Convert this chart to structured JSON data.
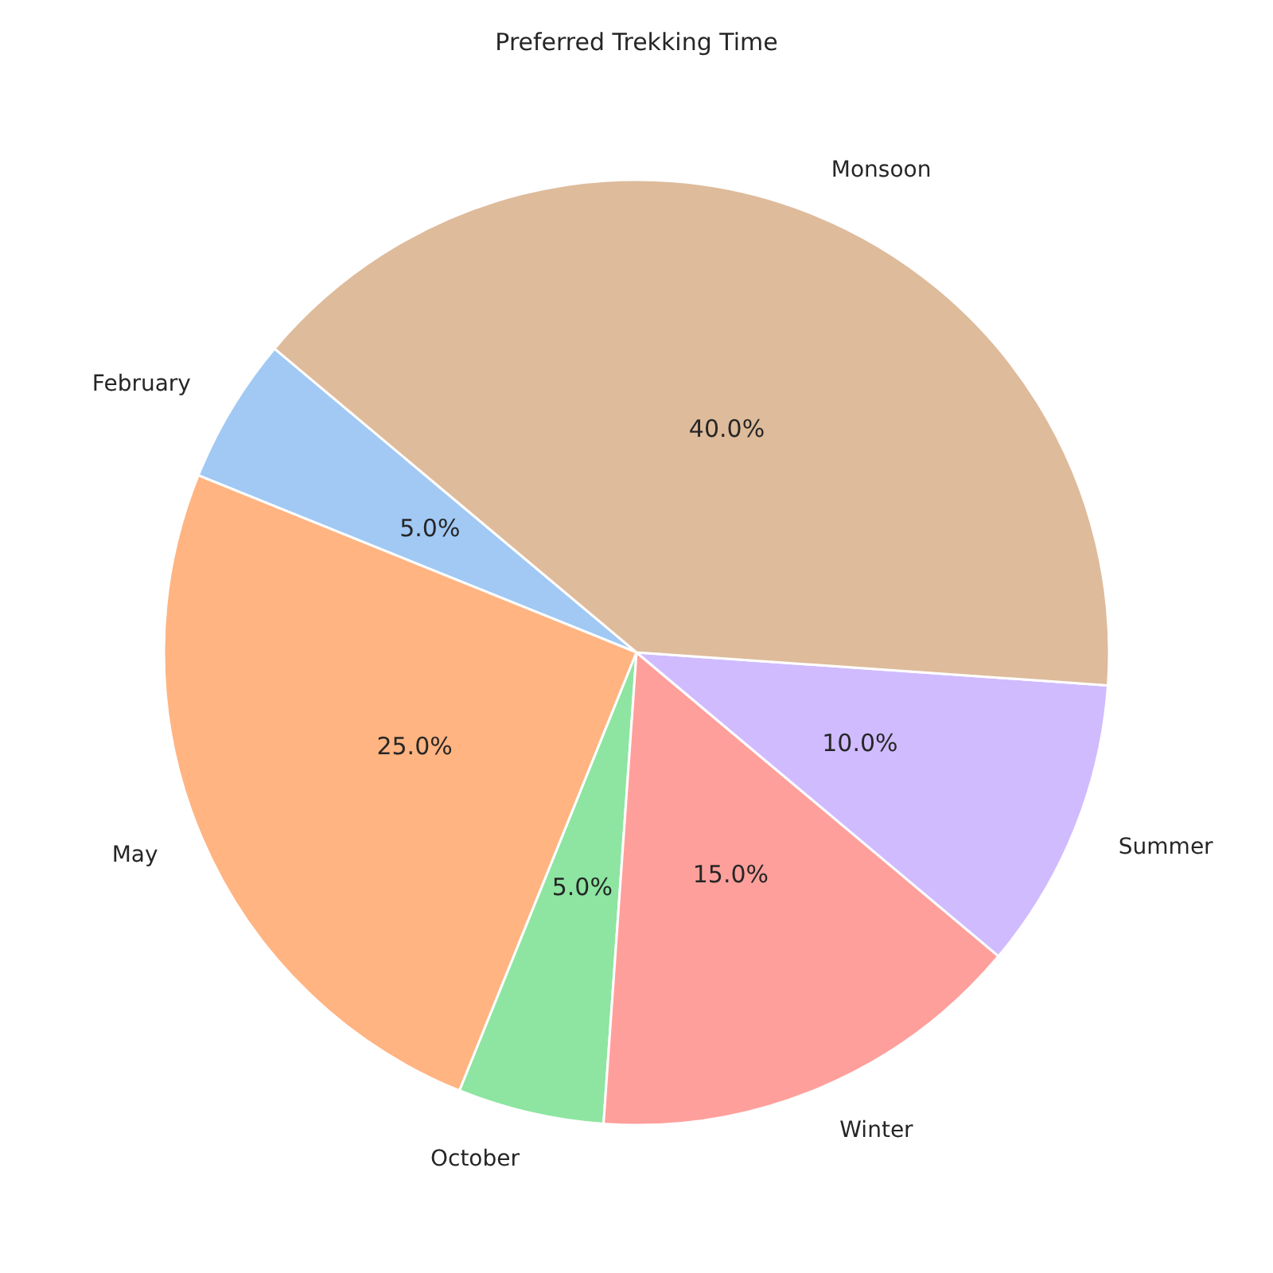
{
  "chart_data": {
    "type": "pie",
    "title": "Preferred Trekking Time",
    "categories": [
      "February",
      "May",
      "October",
      "Winter",
      "Summer",
      "Monsoon"
    ],
    "values": [
      5,
      25,
      5,
      15,
      10,
      40
    ],
    "value_labels": [
      "5.0%",
      "25.0%",
      "5.0%",
      "15.0%",
      "10.0%",
      "40.0%"
    ],
    "colors": [
      "#a1c9f4",
      "#ffb482",
      "#8de5a1",
      "#ff9f9b",
      "#d0bbff",
      "#debb9b"
    ],
    "legend": false
  }
}
